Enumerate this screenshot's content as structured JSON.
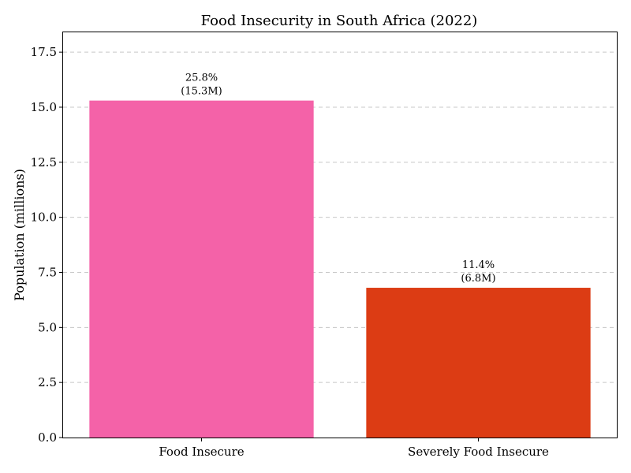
{
  "chart_data": {
    "type": "bar",
    "title": "Food Insecurity in South Africa (2022)",
    "xlabel": "",
    "ylabel": "Population (millions)",
    "categories": [
      "Food Insecure",
      "Severely Food Insecure"
    ],
    "values": [
      15.3,
      6.8
    ],
    "percentages": [
      "25.8%",
      "11.4%"
    ],
    "value_labels": [
      "(15.3M)",
      "(6.8M)"
    ],
    "colors": [
      "#F462A8",
      "#DC3C14"
    ],
    "ylim": [
      0,
      18.4
    ],
    "yticks": [
      0.0,
      2.5,
      5.0,
      7.5,
      10.0,
      12.5,
      15.0,
      17.5
    ],
    "ytick_labels": [
      "0.0",
      "2.5",
      "5.0",
      "7.5",
      "10.0",
      "12.5",
      "15.0",
      "17.5"
    ],
    "grid": "y-dashed",
    "legend": "none"
  }
}
